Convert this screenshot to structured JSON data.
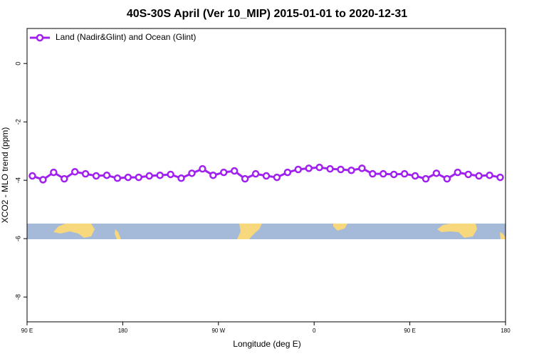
{
  "chart_data": {
    "type": "line",
    "title": "40S-30S April (Ver 10_MIP)   2015-01-01 to 2020-12-31",
    "xlabel": "Longitude (deg E)",
    "ylabel": "XCO2 - MLO trend (ppm)",
    "x": [
      95,
      105,
      115,
      125,
      135,
      145,
      155,
      165,
      175,
      185,
      195,
      205,
      215,
      225,
      235,
      245,
      255,
      265,
      275,
      285,
      295,
      305,
      315,
      325,
      335,
      345,
      355,
      365,
      375,
      385,
      395,
      405,
      415,
      425,
      435,
      445,
      455,
      465,
      475,
      485,
      495,
      505,
      515,
      525,
      535
    ],
    "series": [
      {
        "name": "Land (Nadir&Glint) and Ocean (Glint)",
        "color": "#a020f0",
        "values": [
          -3.85,
          -3.98,
          -3.73,
          -3.95,
          -3.71,
          -3.78,
          -3.85,
          -3.83,
          -3.93,
          -3.9,
          -3.9,
          -3.85,
          -3.83,
          -3.8,
          -3.93,
          -3.76,
          -3.61,
          -3.83,
          -3.73,
          -3.68,
          -3.95,
          -3.78,
          -3.85,
          -3.9,
          -3.73,
          -3.63,
          -3.59,
          -3.56,
          -3.61,
          -3.63,
          -3.66,
          -3.59,
          -3.78,
          -3.78,
          -3.8,
          -3.78,
          -3.85,
          -3.95,
          -3.76,
          -3.95,
          -3.73,
          -3.8,
          -3.85,
          -3.83,
          -3.9
        ]
      }
    ],
    "xlim": [
      90,
      540
    ],
    "xticks": [
      {
        "value": 90,
        "label": "90 E"
      },
      {
        "value": 180,
        "label": "180"
      },
      {
        "value": 270,
        "label": "90 W"
      },
      {
        "value": 360,
        "label": "0"
      },
      {
        "value": 450,
        "label": "90 E"
      },
      {
        "value": 540,
        "label": "180"
      }
    ],
    "ylim": [
      -8.85,
      1.2
    ],
    "yticks": [
      0,
      -2,
      -4,
      -6,
      -8
    ],
    "legend": "top-left"
  }
}
